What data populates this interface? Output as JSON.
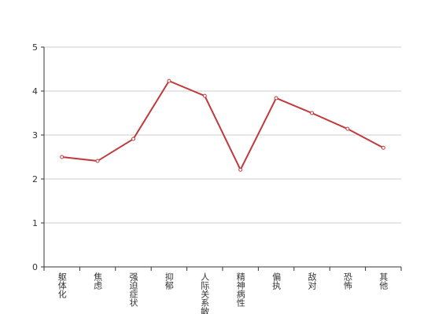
{
  "chart_data": {
    "type": "line",
    "categories": [
      "躯体化",
      "焦虑",
      "强迫症状",
      "抑郁",
      "人际关系敏感",
      "精神病性",
      "偏执",
      "敌对",
      "恐怖",
      "其他"
    ],
    "series": [
      {
        "color": "#c0393b",
        "values": [
          2.5,
          2.41,
          2.91,
          4.23,
          3.89,
          2.21,
          3.84,
          3.5,
          3.14,
          2.71
        ]
      }
    ],
    "ylim": [
      0,
      5
    ],
    "yticks": [
      0,
      1,
      2,
      3,
      4,
      5
    ],
    "grid": true
  }
}
